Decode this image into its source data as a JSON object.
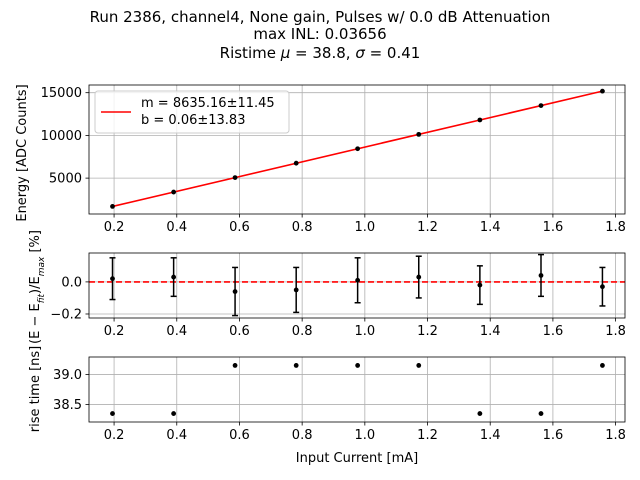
{
  "title_lines": [
    "Run 2386, channel4, None gain, Pulses w/ 0.0 dB Attenuation",
    "max INL: 0.03656",
    "Ristime μ = 38.8, σ = 0.41"
  ],
  "xlabel": "Input Current [mA]",
  "legend": {
    "line1": "m = 8635.16±11.45",
    "line2": "b = 0.06±13.83"
  },
  "colors": {
    "fit": "#ff0000",
    "points": "#000000",
    "grid": "#b0b0b0"
  },
  "chart_data": [
    {
      "type": "scatter",
      "name": "energy",
      "ylabel": "Energy [ADC Counts]",
      "x": [
        0.195,
        0.39,
        0.586,
        0.781,
        0.977,
        1.172,
        1.367,
        1.562,
        1.758
      ],
      "y": [
        1690,
        3370,
        5060,
        6745,
        8440,
        10120,
        11805,
        13490,
        15180
      ],
      "fit": {
        "slope": 8635.16,
        "intercept": 0.06
      },
      "xlim": [
        0.12,
        1.83
      ],
      "ylim": [
        800,
        15900
      ],
      "xticks": [
        "0.2",
        "0.4",
        "0.6",
        "0.8",
        "1.0",
        "1.2",
        "1.4",
        "1.6",
        "1.8"
      ],
      "yticks": [
        "5000",
        "10000",
        "15000"
      ],
      "grid": true,
      "legend_position": "upper-left"
    },
    {
      "type": "scatter",
      "name": "residuals",
      "ylabel": "(E − E_fit)/E_max [%]",
      "x": [
        0.195,
        0.39,
        0.586,
        0.781,
        0.977,
        1.172,
        1.367,
        1.562,
        1.758
      ],
      "y": [
        0.02,
        0.03,
        -0.06,
        -0.05,
        0.01,
        0.03,
        -0.02,
        0.04,
        -0.03
      ],
      "yerr": [
        0.13,
        0.12,
        0.15,
        0.14,
        0.14,
        0.13,
        0.12,
        0.13,
        0.12
      ],
      "zero_line": {
        "y": 0,
        "style": "dashed",
        "color": "#ff0000"
      },
      "xlim": [
        0.12,
        1.83
      ],
      "ylim": [
        -0.225,
        0.18
      ],
      "xticks": [
        "0.2",
        "0.4",
        "0.6",
        "0.8",
        "1.0",
        "1.2",
        "1.4",
        "1.6",
        "1.8"
      ],
      "yticks": [
        "−0.2",
        "0.0"
      ],
      "grid": true
    },
    {
      "type": "scatter",
      "name": "risetime",
      "ylabel": "rise time [ns]",
      "x": [
        0.195,
        0.39,
        0.586,
        0.781,
        0.977,
        1.172,
        1.367,
        1.562,
        1.758
      ],
      "y": [
        38.35,
        38.35,
        39.15,
        39.15,
        39.15,
        39.15,
        38.35,
        38.35,
        39.15
      ],
      "xlim": [
        0.12,
        1.83
      ],
      "ylim": [
        38.21,
        39.29
      ],
      "xticks": [
        "0.2",
        "0.4",
        "0.6",
        "0.8",
        "1.0",
        "1.2",
        "1.4",
        "1.6",
        "1.8"
      ],
      "yticks": [
        "38.5",
        "39.0"
      ],
      "grid": true
    }
  ]
}
